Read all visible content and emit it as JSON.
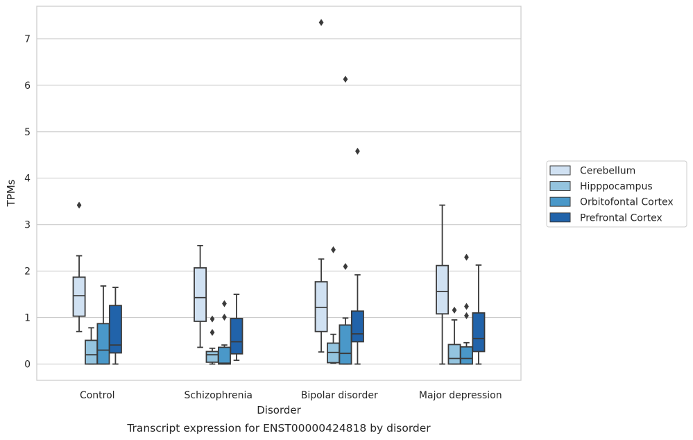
{
  "chart_data": {
    "type": "box",
    "title": "",
    "caption": "Transcript expression for ENST00000424818 by disorder",
    "xlabel": "Disorder",
    "ylabel": "TPMs",
    "ylim": [
      -0.35,
      7.7
    ],
    "yticks": [
      0,
      1,
      2,
      3,
      4,
      5,
      6,
      7
    ],
    "grid": "horizontal",
    "legend_position": "right",
    "categories": [
      "Control",
      "Schizophrenia",
      "Bipolar disorder",
      "Major depression"
    ],
    "series": [
      {
        "name": "Cerebellum",
        "color": "#d0e1f2",
        "boxes": [
          {
            "whisker_low": 0.7,
            "q1": 1.03,
            "median": 1.47,
            "q3": 1.87,
            "whisker_high": 2.33,
            "outliers": [
              3.42
            ]
          },
          {
            "whisker_low": 0.36,
            "q1": 0.92,
            "median": 1.43,
            "q3": 2.07,
            "whisker_high": 2.55,
            "outliers": []
          },
          {
            "whisker_low": 0.26,
            "q1": 0.7,
            "median": 1.22,
            "q3": 1.77,
            "whisker_high": 2.26,
            "outliers": [
              7.35
            ]
          },
          {
            "whisker_low": 0.0,
            "q1": 1.08,
            "median": 1.56,
            "q3": 2.12,
            "whisker_high": 3.42,
            "outliers": []
          }
        ]
      },
      {
        "name": "Hipppocampus",
        "color": "#94c4df",
        "boxes": [
          {
            "whisker_low": 0.0,
            "q1": 0.0,
            "median": 0.2,
            "q3": 0.51,
            "whisker_high": 0.78,
            "outliers": []
          },
          {
            "whisker_low": 0.0,
            "q1": 0.04,
            "median": 0.2,
            "q3": 0.27,
            "whisker_high": 0.34,
            "outliers": [
              0.97,
              0.68
            ]
          },
          {
            "whisker_low": 0.02,
            "q1": 0.03,
            "median": 0.25,
            "q3": 0.45,
            "whisker_high": 0.64,
            "outliers": [
              2.46
            ]
          },
          {
            "whisker_low": 0.0,
            "q1": 0.0,
            "median": 0.12,
            "q3": 0.42,
            "whisker_high": 0.95,
            "outliers": [
              1.16
            ]
          }
        ]
      },
      {
        "name": "Orbitofontal Cortex",
        "color": "#4a98c9",
        "boxes": [
          {
            "whisker_low": 0.0,
            "q1": 0.0,
            "median": 0.3,
            "q3": 0.87,
            "whisker_high": 1.68,
            "outliers": []
          },
          {
            "whisker_low": 0.0,
            "q1": 0.0,
            "median": 0.02,
            "q3": 0.36,
            "whisker_high": 0.41,
            "outliers": [
              1.3,
              1.01
            ]
          },
          {
            "whisker_low": 0.0,
            "q1": 0.0,
            "median": 0.23,
            "q3": 0.84,
            "whisker_high": 0.99,
            "outliers": [
              2.1,
              6.13
            ]
          },
          {
            "whisker_low": 0.0,
            "q1": 0.0,
            "median": 0.12,
            "q3": 0.37,
            "whisker_high": 0.46,
            "outliers": [
              1.24,
              1.04,
              2.3
            ]
          }
        ]
      },
      {
        "name": "Prefrontal Cortex",
        "color": "#2163aa",
        "boxes": [
          {
            "whisker_low": 0.0,
            "q1": 0.24,
            "median": 0.41,
            "q3": 1.26,
            "whisker_high": 1.65,
            "outliers": []
          },
          {
            "whisker_low": 0.08,
            "q1": 0.22,
            "median": 0.48,
            "q3": 0.98,
            "whisker_high": 1.5,
            "outliers": []
          },
          {
            "whisker_low": 0.0,
            "q1": 0.48,
            "median": 0.65,
            "q3": 1.14,
            "whisker_high": 1.92,
            "outliers": [
              4.58
            ]
          },
          {
            "whisker_low": 0.0,
            "q1": 0.27,
            "median": 0.55,
            "q3": 1.1,
            "whisker_high": 2.13,
            "outliers": []
          }
        ]
      }
    ]
  }
}
